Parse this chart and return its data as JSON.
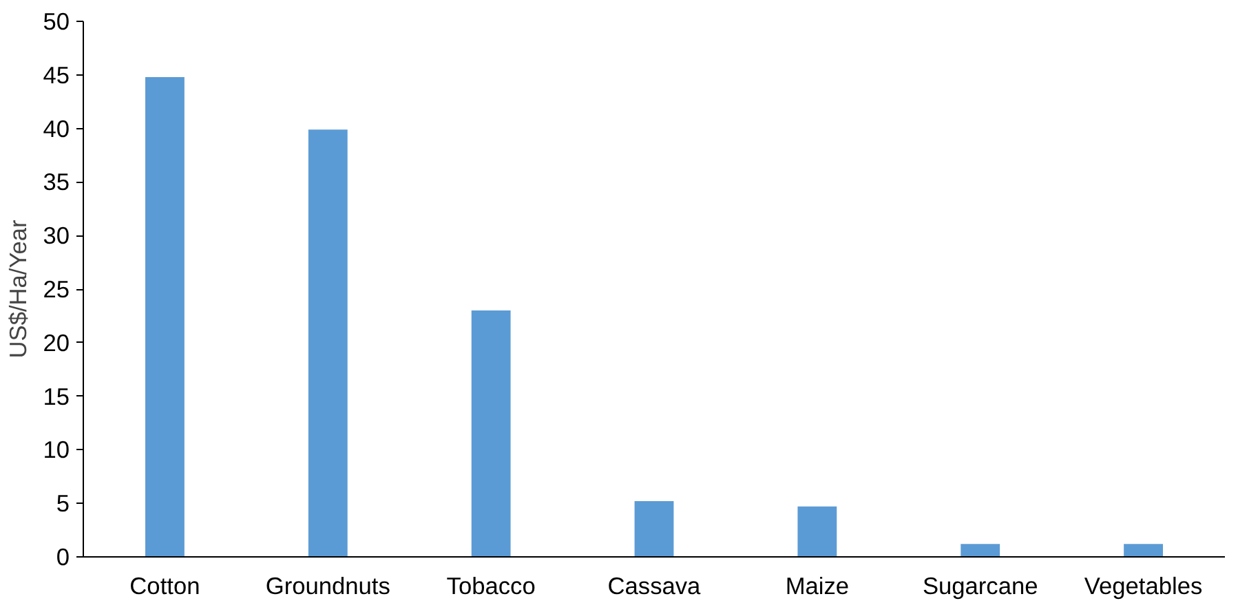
{
  "chart_data": {
    "type": "bar",
    "ylabel": "US$/Ha/Year",
    "categories": [
      "Cotton",
      "Groundnuts",
      "Tobacco",
      "Cassava",
      "Maize",
      "Sugarcane",
      "Vegetables"
    ],
    "values": [
      44.8,
      39.9,
      23,
      5.2,
      4.7,
      1.2,
      1.2
    ],
    "color": "#5b9bd5",
    "ylim": [
      0,
      50
    ],
    "yticks": [
      0,
      5,
      10,
      15,
      20,
      25,
      30,
      35,
      40,
      45,
      50
    ],
    "grid": false
  }
}
